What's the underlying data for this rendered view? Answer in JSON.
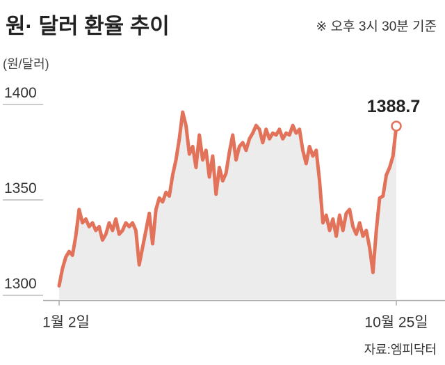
{
  "chart_data": {
    "type": "line",
    "title": "원· 달러 환율 추이",
    "note": "※ 오후 3시 30분 기준",
    "y_unit_label": "(원/달러)",
    "source": "자료:엠피닥터",
    "color": "#e2735a",
    "fill_color": "#ececec",
    "ylim": [
      1298,
      1410
    ],
    "yticks": [
      1300,
      1350,
      1400
    ],
    "categories": [
      "1월 2일",
      null,
      null,
      null,
      null,
      null,
      null,
      null,
      null,
      null,
      null,
      null,
      null,
      null,
      null,
      null,
      null,
      null,
      null,
      null,
      null,
      null,
      null,
      null,
      null,
      null,
      null,
      null,
      null,
      null,
      null,
      null,
      null,
      null,
      null,
      null,
      null,
      null,
      null,
      null,
      null,
      null,
      null,
      null,
      null,
      null,
      null,
      null,
      null,
      null,
      null,
      null,
      null,
      null,
      null,
      null,
      null,
      null,
      null,
      null,
      null,
      null,
      null,
      null,
      null,
      null,
      null,
      null,
      null,
      null,
      null,
      null,
      null,
      null,
      null,
      null,
      null,
      null,
      null,
      null,
      null,
      null,
      null,
      null,
      null,
      null,
      null,
      null,
      null,
      null,
      null,
      null,
      null,
      null,
      null,
      null,
      null,
      null,
      null,
      null,
      null,
      "10월 25일"
    ],
    "values": [
      1305,
      1314,
      1320,
      1323,
      1321,
      1331,
      1345,
      1338,
      1340,
      1336,
      1338,
      1334,
      1336,
      1329,
      1332,
      1338,
      1334,
      1340,
      1332,
      1334,
      1338,
      1336,
      1338,
      1334,
      1316,
      1325,
      1334,
      1343,
      1327,
      1345,
      1351,
      1349,
      1354,
      1352,
      1363,
      1371,
      1382,
      1396,
      1389,
      1374,
      1378,
      1367,
      1384,
      1371,
      1376,
      1362,
      1373,
      1353,
      1367,
      1360,
      1364,
      1375,
      1384,
      1371,
      1378,
      1380,
      1376,
      1382,
      1385,
      1389,
      1387,
      1380,
      1387,
      1382,
      1385,
      1384,
      1387,
      1382,
      1385,
      1384,
      1389,
      1385,
      1387,
      1376,
      1369,
      1378,
      1373,
      1376,
      1360,
      1338,
      1342,
      1334,
      1340,
      1331,
      1342,
      1334,
      1343,
      1345,
      1336,
      1332,
      1338,
      1331,
      1334,
      1325,
      1312,
      1334,
      1351,
      1352,
      1363,
      1367,
      1373,
      1388.7
    ]
  }
}
